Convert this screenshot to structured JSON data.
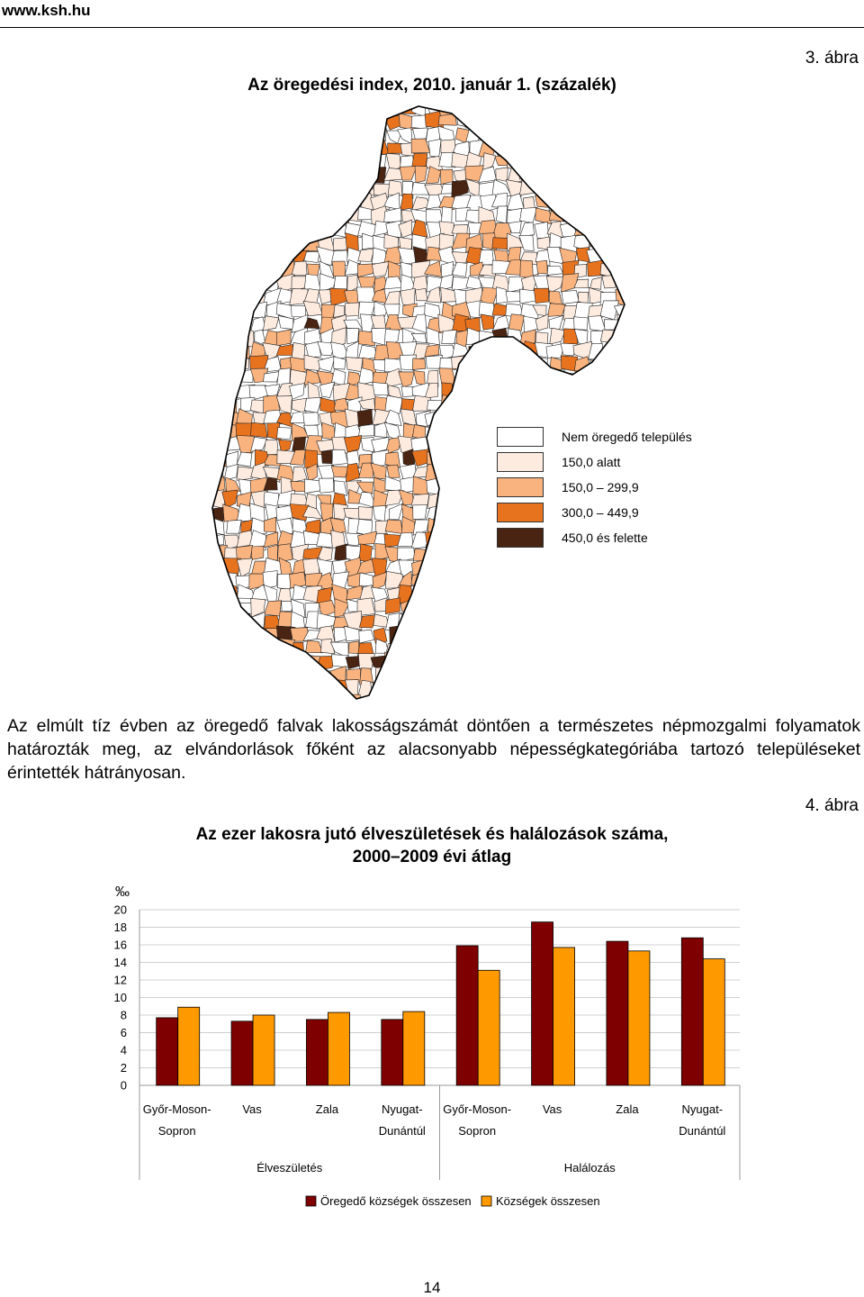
{
  "header": {
    "site_url": "www.ksh.hu"
  },
  "figure3": {
    "label": "3. ábra",
    "title": "Az öregedési index, 2010. január 1. (százalék)",
    "legend": [
      {
        "label": "Nem öregedő település",
        "color": "#ffffff"
      },
      {
        "label": "150,0 alatt",
        "color": "#fdebe0"
      },
      {
        "label": "150,0 – 299,9",
        "color": "#f9b37f"
      },
      {
        "label": "300,0 – 449,9",
        "color": "#e8731f"
      },
      {
        "label": "450,0 és felette",
        "color": "#4a2412"
      }
    ]
  },
  "body_text": "Az elmúlt tíz évben az öregedő falvak lakosságszámát döntően a természetes népmozgalmi folyamatok határozták meg, az elvándorlások főként az alacsonyabb népességkategóriába tartozó településeket érintették hátrányosan.",
  "figure4": {
    "label": "4. ábra",
    "title_line1": "Az ezer lakosra jutó élveszületések és halálozások száma,",
    "title_line2": "2000–2009 évi átlag"
  },
  "chart_data": {
    "type": "bar",
    "ylabel": "‰",
    "ylim": [
      0,
      20
    ],
    "yticks": [
      "20",
      "18",
      "16",
      "14",
      "12",
      "10",
      "8",
      "6",
      "4",
      "2",
      "0"
    ],
    "categories": [
      [
        "Győr-Moson-",
        "Sopron"
      ],
      [
        "Vas",
        ""
      ],
      [
        "Zala",
        ""
      ],
      [
        "Nyugat-",
        "Dunántúl"
      ],
      [
        "Győr-Moson-",
        "Sopron"
      ],
      [
        "Vas",
        ""
      ],
      [
        "Zala",
        ""
      ],
      [
        "Nyugat-",
        "Dunántúl"
      ]
    ],
    "groups": [
      "Élveszületés",
      "Halálozás"
    ],
    "series": [
      {
        "name": "Öregedő községek összesen",
        "color": "#7f0000",
        "values": [
          7.7,
          7.3,
          7.5,
          7.5,
          15.9,
          18.6,
          16.4,
          16.8
        ]
      },
      {
        "name": "Községek összesen",
        "color": "#ff9900",
        "values": [
          8.9,
          8.0,
          8.3,
          8.4,
          13.1,
          15.7,
          15.3,
          14.4
        ]
      }
    ],
    "grid": true,
    "legend_position": "bottom"
  },
  "footer": {
    "page_number": "14"
  }
}
